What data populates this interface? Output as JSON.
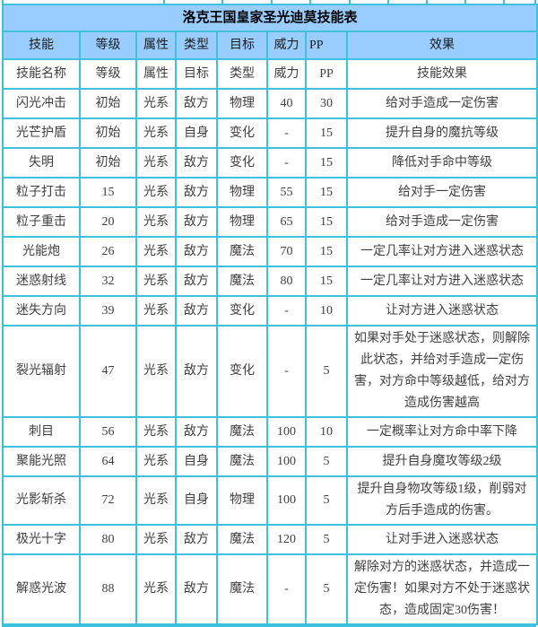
{
  "page": {
    "title": "洛克王国皇家圣光迪莫技能表"
  },
  "table": {
    "columns": [
      "技能",
      "等级",
      "属性",
      "类型",
      "目标",
      "威力",
      "PP",
      "效果"
    ],
    "column_keys": [
      "skill",
      "level",
      "attribute",
      "target",
      "type",
      "power",
      "pp",
      "effect"
    ],
    "rows": [
      [
        "技能名称",
        "等级",
        "属性",
        "目标",
        "类型",
        "威力",
        "PP",
        "技能效果"
      ],
      [
        "闪光冲击",
        "初始",
        "光系",
        "敌方",
        "物理",
        "40",
        "30",
        "给对手造成一定伤害"
      ],
      [
        "光芒护盾",
        "初始",
        "光系",
        "自身",
        "变化",
        "-",
        "15",
        "提升自身的魔抗等级"
      ],
      [
        "失明",
        "初始",
        "光系",
        "敌方",
        "变化",
        "-",
        "15",
        "降低对手命中等级"
      ],
      [
        "粒子打击",
        "15",
        "光系",
        "敌方",
        "物理",
        "55",
        "15",
        "给对手一定伤害"
      ],
      [
        "粒子重击",
        "20",
        "光系",
        "敌方",
        "物理",
        "65",
        "15",
        "给对手造成一定伤害"
      ],
      [
        "光能炮",
        "26",
        "光系",
        "敌方",
        "魔法",
        "70",
        "15",
        "一定几率让对方进入迷惑状态"
      ],
      [
        "迷惑射线",
        "32",
        "光系",
        "敌方",
        "魔法",
        "80",
        "15",
        "一定几率让对方进入迷惑状态"
      ],
      [
        "迷失方向",
        "39",
        "光系",
        "敌方",
        "变化",
        "-",
        "10",
        "让对方进入迷惑状态"
      ],
      [
        "裂光辐射",
        "47",
        "光系",
        "敌方",
        "变化",
        "-",
        "5",
        "如果对手处于迷惑状态，则解除此状态，并给对手造成一定伤害，对方命中等级越低，给对方造成伤害越高"
      ],
      [
        "刺目",
        "56",
        "光系",
        "敌方",
        "魔法",
        "100",
        "10",
        "一定概率让对方命中率下降"
      ],
      [
        "聚能光照",
        "64",
        "光系",
        "自身",
        "魔法",
        "100",
        "5",
        "提升自身魔攻等级2级"
      ],
      [
        "光影斩杀",
        "72",
        "光系",
        "自身",
        "物理",
        "100",
        "5",
        "提升自身物攻等级1级，削弱对方后手造成的伤害。"
      ],
      [
        "极光十字",
        "80",
        "光系",
        "敌方",
        "魔法",
        "120",
        "5",
        "让对手进入迷惑状态"
      ],
      [
        "解惑光波",
        "88",
        "光系",
        "敌方",
        "魔法",
        "-",
        "5",
        "解除对方的迷惑状态，并造成一定伤害！如果对方不处于迷惑状态，造成固定30伤害！"
      ]
    ]
  },
  "colors": {
    "border": "#3ec1dc",
    "header_bg": "#99ccff",
    "body_bg": "#ffffff",
    "body_text": "#404040",
    "title_text": "#000000"
  }
}
